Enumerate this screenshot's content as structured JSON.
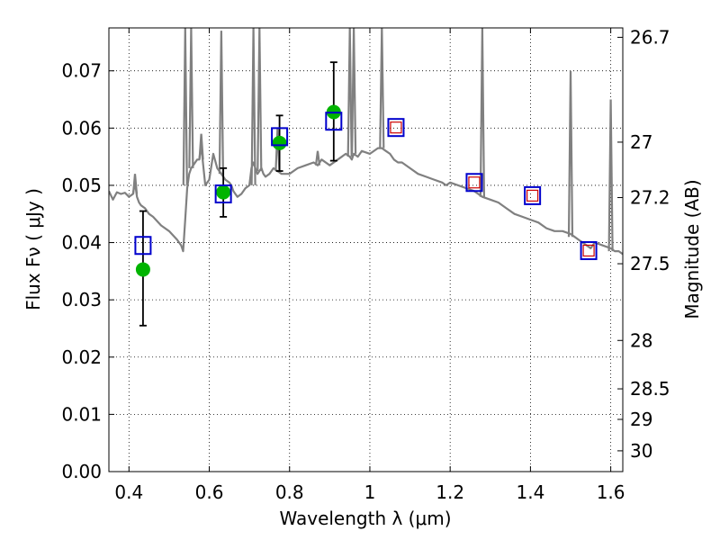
{
  "chart_data": {
    "type": "scatter",
    "xlabel": "Wavelength  λ (μm)",
    "ylabel": "Flux  Fν  ( μJy )",
    "y2label": "Magnitude (AB)",
    "xlim": [
      0.35,
      1.63
    ],
    "ylim": [
      0.0,
      0.0775
    ],
    "grid": true,
    "xticks": [
      0.4,
      0.6,
      0.8,
      1.0,
      1.2,
      1.4,
      1.6
    ],
    "xtick_labels": [
      "0.4",
      "0.6",
      "0.8",
      "1",
      "1.2",
      "1.4",
      "1.6"
    ],
    "yticks": [
      0.0,
      0.01,
      0.02,
      0.03,
      0.04,
      0.05,
      0.06,
      0.07
    ],
    "ytick_labels": [
      "0.00",
      "0.01",
      "0.02",
      "0.03",
      "0.04",
      "0.05",
      "0.06",
      "0.07"
    ],
    "y2ticks": [
      {
        "label": "26.7",
        "mag": 26.7
      },
      {
        "label": "27",
        "mag": 27.0
      },
      {
        "label": "27.2",
        "mag": 27.2
      },
      {
        "label": "27.5",
        "mag": 27.5
      },
      {
        "label": "28",
        "mag": 28.0
      },
      {
        "label": "28.5",
        "mag": 28.5
      },
      {
        "label": "29",
        "mag": 29.0
      },
      {
        "label": "30",
        "mag": 30.0
      }
    ],
    "colors": {
      "model": "#808080",
      "observed": "#00b400",
      "model_photometry": "#0000cc",
      "inner_square": "#cc0000",
      "errorbar": "#000000"
    },
    "series": [
      {
        "kind": "model-spectrum",
        "x": [
          0.35,
          0.36,
          0.37,
          0.38,
          0.39,
          0.4,
          0.41,
          0.415,
          0.42,
          0.425,
          0.43,
          0.44,
          0.45,
          0.46,
          0.48,
          0.5,
          0.52,
          0.53,
          0.535,
          0.54,
          0.545,
          0.55,
          0.555,
          0.56,
          0.565,
          0.57,
          0.575,
          0.58,
          0.585,
          0.59,
          0.6,
          0.61,
          0.62,
          0.63,
          0.64,
          0.65,
          0.655,
          0.66,
          0.665,
          0.67,
          0.68,
          0.69,
          0.7,
          0.705,
          0.71,
          0.715,
          0.72,
          0.725,
          0.73,
          0.735,
          0.74,
          0.75,
          0.76,
          0.78,
          0.8,
          0.82,
          0.84,
          0.86,
          0.87,
          0.88,
          0.9,
          0.92,
          0.94,
          0.95,
          0.955,
          0.96,
          0.97,
          0.98,
          1.0,
          1.02,
          1.03,
          1.04,
          1.05,
          1.06,
          1.07,
          1.08,
          1.1,
          1.12,
          1.14,
          1.16,
          1.18,
          1.19,
          1.2,
          1.22,
          1.24,
          1.26,
          1.27,
          1.28,
          1.3,
          1.32,
          1.34,
          1.36,
          1.38,
          1.4,
          1.42,
          1.44,
          1.46,
          1.48,
          1.5,
          1.51,
          1.52,
          1.53,
          1.54,
          1.55,
          1.56,
          1.58,
          1.6,
          1.61,
          1.62,
          1.63
        ],
        "y": [
          0.049,
          0.0475,
          0.0488,
          0.0485,
          0.0487,
          0.048,
          0.0485,
          0.0505,
          0.048,
          0.047,
          0.0465,
          0.046,
          0.045,
          0.0445,
          0.043,
          0.042,
          0.0405,
          0.0395,
          0.0385,
          0.044,
          0.0495,
          0.052,
          0.053,
          0.0535,
          0.054,
          0.0545,
          0.0545,
          0.057,
          0.0535,
          0.05,
          0.051,
          0.0555,
          0.053,
          0.052,
          0.051,
          0.0505,
          0.05,
          0.049,
          0.0485,
          0.048,
          0.0485,
          0.0495,
          0.05,
          0.053,
          0.054,
          0.053,
          0.052,
          0.0525,
          0.053,
          0.052,
          0.0515,
          0.052,
          0.053,
          0.052,
          0.052,
          0.053,
          0.0535,
          0.054,
          0.0535,
          0.0545,
          0.0535,
          0.0545,
          0.0555,
          0.055,
          0.0545,
          0.0555,
          0.055,
          0.056,
          0.0555,
          0.0565,
          0.0565,
          0.056,
          0.0555,
          0.0545,
          0.054,
          0.054,
          0.053,
          0.052,
          0.0515,
          0.051,
          0.0505,
          0.05,
          0.0505,
          0.05,
          0.0495,
          0.049,
          0.0485,
          0.048,
          0.0475,
          0.047,
          0.046,
          0.045,
          0.0445,
          0.044,
          0.0435,
          0.0425,
          0.042,
          0.042,
          0.0415,
          0.041,
          0.0405,
          0.04,
          0.0395,
          0.039,
          0.04,
          0.0395,
          0.039,
          0.0385,
          0.0385,
          0.038
        ]
      },
      {
        "kind": "emission-lines",
        "lines": [
          {
            "x": 0.415,
            "peak": 0.052,
            "base": 0.0485
          },
          {
            "x": 0.54,
            "peak": 0.0775,
            "base": 0.05
          },
          {
            "x": 0.555,
            "peak": 0.0775,
            "base": 0.053
          },
          {
            "x": 0.58,
            "peak": 0.059,
            "base": 0.0545
          },
          {
            "x": 0.63,
            "peak": 0.077,
            "base": 0.052
          },
          {
            "x": 0.71,
            "peak": 0.0775,
            "base": 0.05
          },
          {
            "x": 0.725,
            "peak": 0.0775,
            "base": 0.0525
          },
          {
            "x": 0.77,
            "peak": 0.06,
            "base": 0.0525
          },
          {
            "x": 0.87,
            "peak": 0.056,
            "base": 0.0535
          },
          {
            "x": 0.95,
            "peak": 0.0775,
            "base": 0.055
          },
          {
            "x": 0.96,
            "peak": 0.0775,
            "base": 0.0555
          },
          {
            "x": 1.03,
            "peak": 0.0775,
            "base": 0.0565
          },
          {
            "x": 1.28,
            "peak": 0.0775,
            "base": 0.048
          },
          {
            "x": 1.5,
            "peak": 0.07,
            "base": 0.041
          },
          {
            "x": 1.6,
            "peak": 0.065,
            "base": 0.0385
          }
        ]
      },
      {
        "kind": "observed",
        "x": [
          0.435,
          0.635,
          0.775,
          0.91
        ],
        "y": [
          0.0353,
          0.0488,
          0.0574,
          0.0628
        ],
        "err_low": [
          0.0255,
          0.0445,
          0.0525,
          0.0543
        ],
        "err_high": [
          0.0455,
          0.053,
          0.0622,
          0.0715
        ]
      },
      {
        "kind": "model-photometry",
        "x": [
          0.435,
          0.635,
          0.775,
          0.91,
          1.065,
          1.26,
          1.405,
          1.545
        ],
        "y": [
          0.0395,
          0.0485,
          0.0585,
          0.0612,
          0.0601,
          0.0505,
          0.0482,
          0.0386
        ]
      },
      {
        "kind": "inner-squares",
        "x": [
          1.065,
          1.26,
          1.405,
          1.545
        ],
        "y": [
          0.0601,
          0.0505,
          0.0482,
          0.0386
        ]
      }
    ]
  }
}
